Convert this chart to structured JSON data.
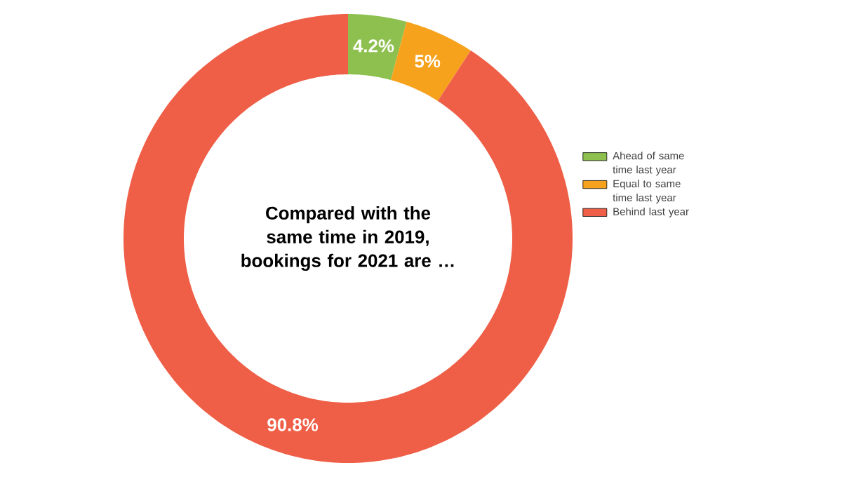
{
  "chart_data": {
    "type": "donut",
    "title": "Compared with the same time in 2019, bookings for 2021 are …",
    "categories": [
      "Ahead of same time last year",
      "Equal to same time last year",
      "Behind last year"
    ],
    "values": [
      4.2,
      5,
      90.8
    ],
    "colors": [
      "#8dc04f",
      "#f6a21d",
      "#ef5f47"
    ],
    "value_labels": [
      "4.2%",
      "5%",
      "90.8%"
    ],
    "legend": "right"
  }
}
